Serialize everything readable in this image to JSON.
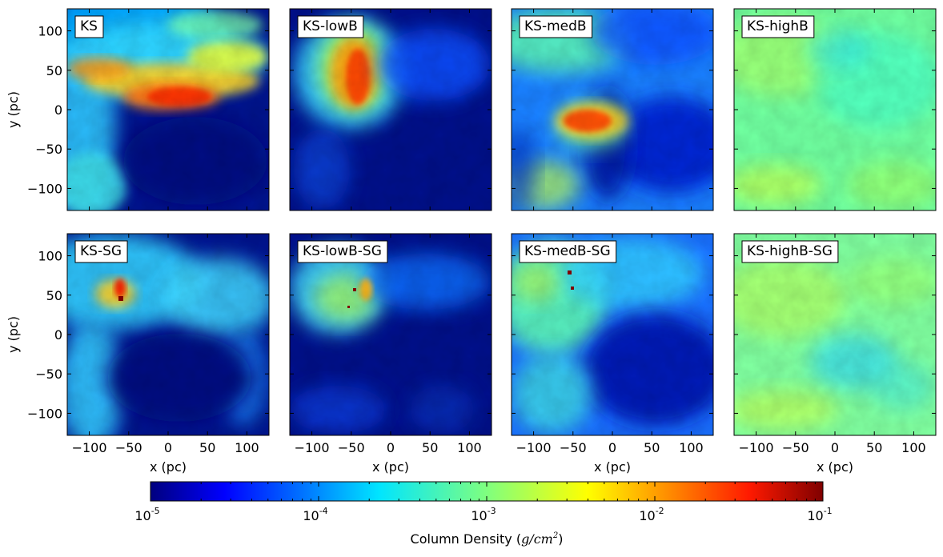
{
  "chart_data": {
    "type": "heatmap",
    "layout": "2x4 grid of column-density maps",
    "colormap": "jet",
    "panels": [
      {
        "label": "KS",
        "row": 0,
        "col": 0,
        "style": "ks"
      },
      {
        "label": "KS-lowB",
        "row": 0,
        "col": 1,
        "style": "lowB"
      },
      {
        "label": "KS-medB",
        "row": 0,
        "col": 2,
        "style": "medB"
      },
      {
        "label": "KS-highB",
        "row": 0,
        "col": 3,
        "style": "highB"
      },
      {
        "label": "KS-SG",
        "row": 1,
        "col": 0,
        "style": "ksSG"
      },
      {
        "label": "KS-lowB-SG",
        "row": 1,
        "col": 1,
        "style": "lowBSG"
      },
      {
        "label": "KS-medB-SG",
        "row": 1,
        "col": 2,
        "style": "medBSG"
      },
      {
        "label": "KS-highB-SG",
        "row": 1,
        "col": 3,
        "style": "highBSG"
      }
    ],
    "x_axis": {
      "label": "x (pc)",
      "range": [
        -128,
        128
      ],
      "ticks": [
        -100,
        -50,
        0,
        50,
        100
      ],
      "tick_labels": [
        "−100",
        "−50",
        "0",
        "50",
        "100"
      ]
    },
    "y_axis": {
      "label": "y (pc)",
      "range": [
        -128,
        128
      ],
      "ticks": [
        100,
        50,
        0,
        -50,
        -100
      ],
      "tick_labels": [
        "100",
        "50",
        "0",
        "−50",
        "−100"
      ]
    },
    "colorbar": {
      "orientation": "horizontal",
      "scale": "log",
      "range": [
        1e-05,
        0.1
      ],
      "tick_values": [
        1e-05,
        0.0001,
        0.001,
        0.01,
        0.1
      ],
      "tick_bases": [
        "10",
        "10",
        "10",
        "10",
        "10"
      ],
      "tick_exponents": [
        "-5",
        "-4",
        "-3",
        "-2",
        "-1"
      ],
      "label_text": "Column Density (",
      "label_math": "g/cm",
      "label_sup": "2",
      "label_close": ")"
    },
    "colors": {
      "jet_stops": [
        "#00007f",
        "#0000ff",
        "#007fff",
        "#00ffff",
        "#7fff7f",
        "#ffff00",
        "#ff7f00",
        "#ff0000",
        "#7f0000"
      ]
    }
  }
}
